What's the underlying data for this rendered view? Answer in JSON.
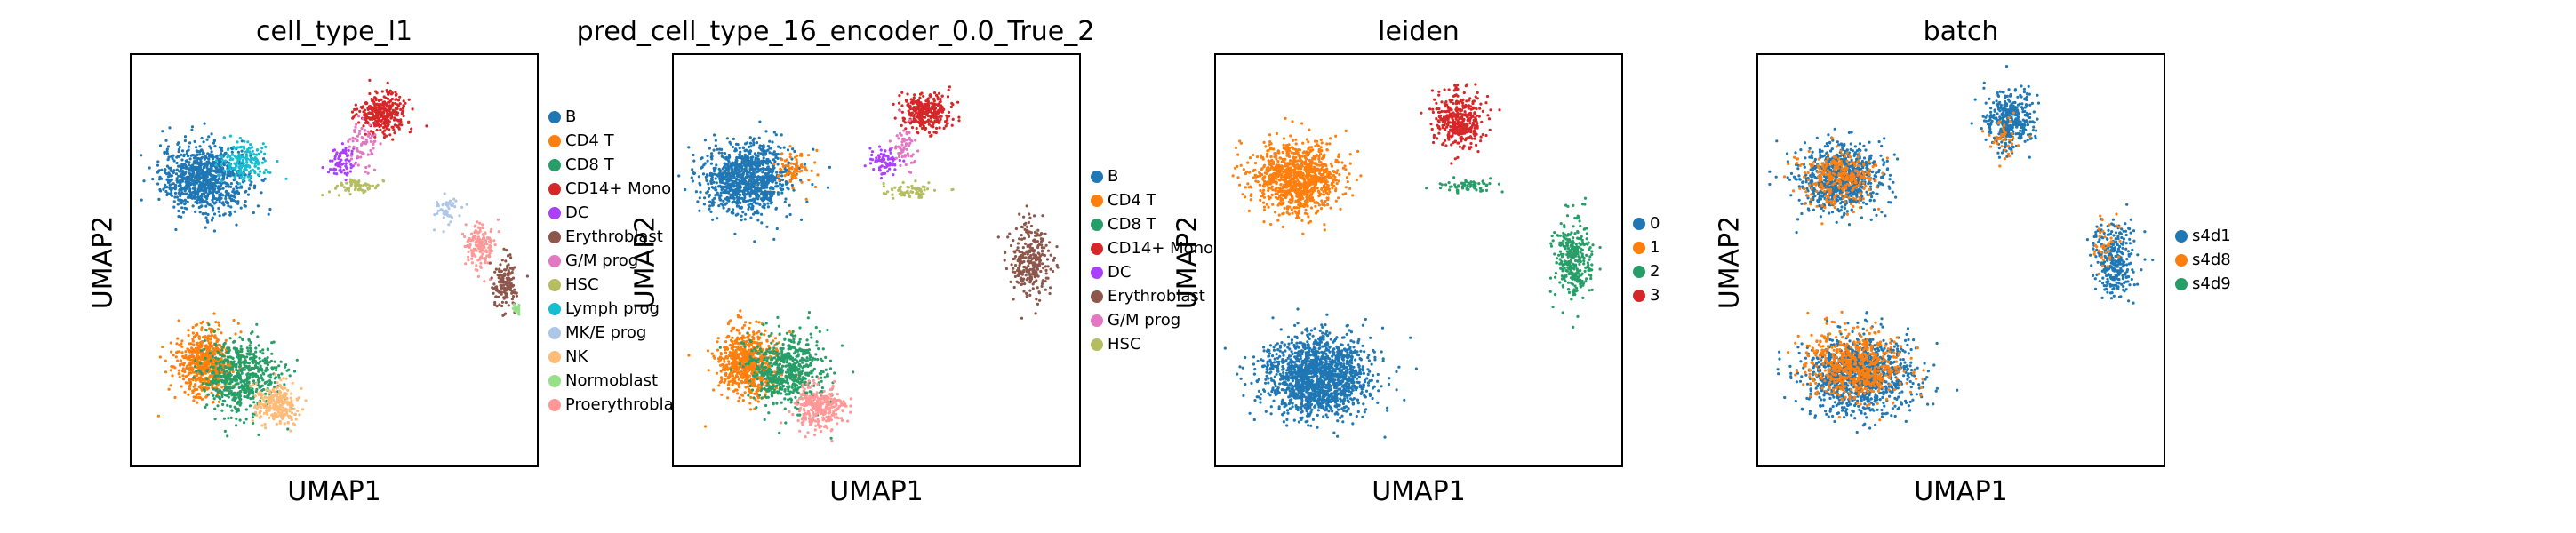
{
  "figure": {
    "xlabel": "UMAP1",
    "ylabel": "UMAP2"
  },
  "palette": {
    "B": "#1f77b4",
    "CD4 T": "#ff7f0e",
    "CD8 T": "#279e68",
    "CD14+ Mono": "#d62728",
    "DC": "#aa40fc",
    "Erythroblast": "#8c564b",
    "G/M prog": "#e377c2",
    "HSC": "#b5bd61",
    "Lymph prog": "#17becf",
    "MK/E prog": "#aec7e8",
    "NK": "#ffbb78",
    "Normoblast": "#98df8a",
    "Proerythroblast": "#ff9896"
  },
  "chart_data": [
    {
      "type": "scatter",
      "title": "cell_type_l1",
      "xlabel": "UMAP1",
      "ylabel": "UMAP2",
      "legend_position": "right",
      "legend": [
        {
          "label": "B",
          "color": "#1f77b4"
        },
        {
          "label": "CD4 T",
          "color": "#ff7f0e"
        },
        {
          "label": "CD8 T",
          "color": "#279e68"
        },
        {
          "label": "CD14+ Mono",
          "color": "#d62728"
        },
        {
          "label": "DC",
          "color": "#aa40fc"
        },
        {
          "label": "Erythroblast",
          "color": "#8c564b"
        },
        {
          "label": "G/M prog",
          "color": "#e377c2"
        },
        {
          "label": "HSC",
          "color": "#b5bd61"
        },
        {
          "label": "Lymph prog",
          "color": "#17becf"
        },
        {
          "label": "MK/E prog",
          "color": "#aec7e8"
        },
        {
          "label": "NK",
          "color": "#ffbb78"
        },
        {
          "label": "Normoblast",
          "color": "#98df8a"
        },
        {
          "label": "Proerythroblas",
          "color": "#ff9896"
        }
      ],
      "clusters": [
        {
          "label": "B",
          "x": 0.18,
          "y": 0.7,
          "sx": 0.09,
          "sy": 0.07,
          "n": 900
        },
        {
          "label": "Lymph prog",
          "x": 0.28,
          "y": 0.74,
          "sx": 0.05,
          "sy": 0.04,
          "n": 160
        },
        {
          "label": "CD14+ Mono",
          "x": 0.62,
          "y": 0.86,
          "sx": 0.05,
          "sy": 0.04,
          "n": 320
        },
        {
          "label": "DC",
          "x": 0.52,
          "y": 0.74,
          "sx": 0.03,
          "sy": 0.03,
          "n": 70
        },
        {
          "label": "G/M prog",
          "x": 0.57,
          "y": 0.78,
          "sx": 0.03,
          "sy": 0.05,
          "n": 70
        },
        {
          "label": "HSC",
          "x": 0.56,
          "y": 0.68,
          "sx": 0.05,
          "sy": 0.015,
          "n": 60
        },
        {
          "label": "MK/E prog",
          "x": 0.78,
          "y": 0.62,
          "sx": 0.03,
          "sy": 0.03,
          "n": 50
        },
        {
          "label": "Proerythroblast",
          "x": 0.86,
          "y": 0.54,
          "sx": 0.03,
          "sy": 0.05,
          "n": 150
        },
        {
          "label": "Erythroblast",
          "x": 0.92,
          "y": 0.44,
          "sx": 0.025,
          "sy": 0.05,
          "n": 150
        },
        {
          "label": "Normoblast",
          "x": 0.95,
          "y": 0.38,
          "sx": 0.01,
          "sy": 0.01,
          "n": 20
        },
        {
          "label": "CD4 T",
          "x": 0.18,
          "y": 0.25,
          "sx": 0.06,
          "sy": 0.07,
          "n": 600
        },
        {
          "label": "CD8 T",
          "x": 0.27,
          "y": 0.22,
          "sx": 0.08,
          "sy": 0.07,
          "n": 600
        },
        {
          "label": "NK",
          "x": 0.36,
          "y": 0.15,
          "sx": 0.05,
          "sy": 0.04,
          "n": 250
        }
      ]
    },
    {
      "type": "scatter",
      "title": "pred_cell_type_16_encoder_0.0_True_2",
      "xlabel": "UMAP1",
      "ylabel": "UMAP2",
      "legend_position": "right",
      "legend": [
        {
          "label": "B",
          "color": "#1f77b4"
        },
        {
          "label": "CD4 T",
          "color": "#ff7f0e"
        },
        {
          "label": "CD8 T",
          "color": "#279e68"
        },
        {
          "label": "CD14+ Mono",
          "color": "#d62728"
        },
        {
          "label": "DC",
          "color": "#aa40fc"
        },
        {
          "label": "Erythroblast",
          "color": "#8c564b"
        },
        {
          "label": "G/M prog",
          "color": "#e377c2"
        },
        {
          "label": "HSC",
          "color": "#b5bd61"
        }
      ],
      "clusters": [
        {
          "label": "B",
          "x": 0.18,
          "y": 0.7,
          "sx": 0.09,
          "sy": 0.07,
          "n": 1000
        },
        {
          "label": "CD4 T",
          "x": 0.3,
          "y": 0.72,
          "sx": 0.04,
          "sy": 0.04,
          "n": 80
        },
        {
          "label": "CD14+ Mono",
          "x": 0.62,
          "y": 0.86,
          "sx": 0.05,
          "sy": 0.04,
          "n": 320
        },
        {
          "label": "DC",
          "x": 0.52,
          "y": 0.74,
          "sx": 0.03,
          "sy": 0.03,
          "n": 70
        },
        {
          "label": "G/M prog",
          "x": 0.57,
          "y": 0.78,
          "sx": 0.03,
          "sy": 0.05,
          "n": 60
        },
        {
          "label": "HSC",
          "x": 0.58,
          "y": 0.67,
          "sx": 0.06,
          "sy": 0.015,
          "n": 70
        },
        {
          "label": "Erythroblast",
          "x": 0.88,
          "y": 0.5,
          "sx": 0.04,
          "sy": 0.08,
          "n": 300
        },
        {
          "label": "CD4 T",
          "x": 0.18,
          "y": 0.25,
          "sx": 0.06,
          "sy": 0.07,
          "n": 650
        },
        {
          "label": "CD8 T",
          "x": 0.28,
          "y": 0.23,
          "sx": 0.08,
          "sy": 0.07,
          "n": 600
        },
        {
          "label": "Proerythroblast",
          "x": 0.36,
          "y": 0.14,
          "sx": 0.05,
          "sy": 0.04,
          "n": 300
        }
      ]
    },
    {
      "type": "scatter",
      "title": "leiden",
      "xlabel": "UMAP1",
      "ylabel": "UMAP2",
      "legend_position": "right",
      "legend": [
        {
          "label": "0",
          "color": "#1f77b4"
        },
        {
          "label": "1",
          "color": "#ff7f0e"
        },
        {
          "label": "2",
          "color": "#279e68"
        },
        {
          "label": "3",
          "color": "#d62728"
        }
      ],
      "clusters": [
        {
          "label": "1",
          "x": 0.2,
          "y": 0.7,
          "sx": 0.09,
          "sy": 0.07,
          "n": 1000
        },
        {
          "label": "3",
          "x": 0.6,
          "y": 0.84,
          "sx": 0.05,
          "sy": 0.06,
          "n": 380
        },
        {
          "label": "2",
          "x": 0.62,
          "y": 0.68,
          "sx": 0.06,
          "sy": 0.015,
          "n": 70
        },
        {
          "label": "2",
          "x": 0.88,
          "y": 0.5,
          "sx": 0.04,
          "sy": 0.08,
          "n": 320
        },
        {
          "label": "0",
          "x": 0.25,
          "y": 0.22,
          "sx": 0.11,
          "sy": 0.08,
          "n": 1600
        }
      ]
    },
    {
      "type": "scatter",
      "title": "batch",
      "xlabel": "UMAP1",
      "ylabel": "UMAP2",
      "legend_position": "right",
      "legend": [
        {
          "label": "s4d1",
          "color": "#1f77b4"
        },
        {
          "label": "s4d8",
          "color": "#ff7f0e"
        },
        {
          "label": "s4d9",
          "color": "#279e68"
        }
      ],
      "clusters": [
        {
          "label": "s4d1",
          "x": 0.2,
          "y": 0.7,
          "sx": 0.09,
          "sy": 0.07,
          "n": 800
        },
        {
          "label": "s4d8",
          "x": 0.2,
          "y": 0.7,
          "sx": 0.08,
          "sy": 0.06,
          "n": 300
        },
        {
          "label": "s4d1",
          "x": 0.62,
          "y": 0.84,
          "sx": 0.05,
          "sy": 0.06,
          "n": 380
        },
        {
          "label": "s4d8",
          "x": 0.6,
          "y": 0.8,
          "sx": 0.04,
          "sy": 0.05,
          "n": 40
        },
        {
          "label": "s4d1",
          "x": 0.88,
          "y": 0.5,
          "sx": 0.04,
          "sy": 0.08,
          "n": 300
        },
        {
          "label": "s4d8",
          "x": 0.86,
          "y": 0.54,
          "sx": 0.03,
          "sy": 0.05,
          "n": 40
        },
        {
          "label": "s4d1",
          "x": 0.25,
          "y": 0.22,
          "sx": 0.11,
          "sy": 0.08,
          "n": 1100
        },
        {
          "label": "s4d8",
          "x": 0.24,
          "y": 0.24,
          "sx": 0.1,
          "sy": 0.07,
          "n": 600
        }
      ]
    }
  ]
}
